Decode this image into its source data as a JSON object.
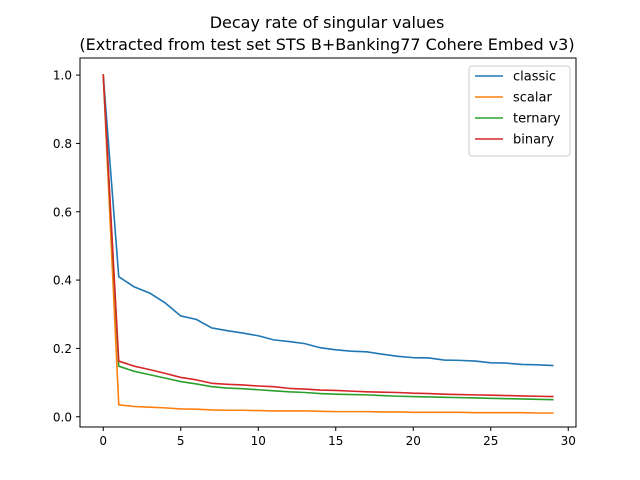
{
  "chart_data": {
    "type": "line",
    "title_lines": [
      "Decay rate of singular values",
      "(Extracted from test set STS B+Banking77 Cohere Embed v3)"
    ],
    "xlabel": "",
    "ylabel": "",
    "xlim": [
      -1.5,
      30.5
    ],
    "ylim": [
      -0.03,
      1.05
    ],
    "x_ticks": [
      0,
      5,
      10,
      15,
      20,
      25,
      30
    ],
    "y_ticks": [
      0.0,
      0.2,
      0.4,
      0.6,
      0.8,
      1.0
    ],
    "y_tick_labels": [
      "0.0",
      "0.2",
      "0.4",
      "0.6",
      "0.8",
      "1.0"
    ],
    "grid": false,
    "legend_position": "top-right",
    "x": [
      0,
      1,
      2,
      3,
      4,
      5,
      6,
      7,
      8,
      9,
      10,
      11,
      12,
      13,
      14,
      15,
      16,
      17,
      18,
      19,
      20,
      21,
      22,
      23,
      24,
      25,
      26,
      27,
      28,
      29
    ],
    "series": [
      {
        "name": "classic",
        "color": "#1f77b4",
        "values": [
          1.0,
          0.41,
          0.38,
          0.362,
          0.333,
          0.295,
          0.285,
          0.26,
          0.252,
          0.245,
          0.237,
          0.225,
          0.22,
          0.214,
          0.202,
          0.196,
          0.192,
          0.19,
          0.183,
          0.177,
          0.173,
          0.172,
          0.166,
          0.165,
          0.163,
          0.158,
          0.157,
          0.153,
          0.152,
          0.15
        ]
      },
      {
        "name": "scalar",
        "color": "#ff7f0e",
        "values": [
          1.0,
          0.035,
          0.03,
          0.028,
          0.026,
          0.023,
          0.022,
          0.02,
          0.019,
          0.019,
          0.018,
          0.017,
          0.017,
          0.017,
          0.016,
          0.015,
          0.015,
          0.015,
          0.014,
          0.014,
          0.013,
          0.013,
          0.013,
          0.013,
          0.012,
          0.012,
          0.012,
          0.012,
          0.011,
          0.011
        ]
      },
      {
        "name": "ternary",
        "color": "#2ca02c",
        "values": [
          1.0,
          0.148,
          0.133,
          0.123,
          0.113,
          0.103,
          0.096,
          0.088,
          0.084,
          0.082,
          0.079,
          0.076,
          0.073,
          0.071,
          0.068,
          0.066,
          0.065,
          0.064,
          0.062,
          0.06,
          0.059,
          0.058,
          0.057,
          0.056,
          0.055,
          0.054,
          0.053,
          0.052,
          0.051,
          0.05
        ]
      },
      {
        "name": "binary",
        "color": "#d62728",
        "values": [
          1.0,
          0.163,
          0.148,
          0.138,
          0.127,
          0.115,
          0.108,
          0.098,
          0.095,
          0.093,
          0.09,
          0.088,
          0.083,
          0.081,
          0.078,
          0.077,
          0.075,
          0.073,
          0.072,
          0.071,
          0.069,
          0.068,
          0.066,
          0.065,
          0.064,
          0.063,
          0.062,
          0.061,
          0.06,
          0.059
        ]
      }
    ]
  }
}
